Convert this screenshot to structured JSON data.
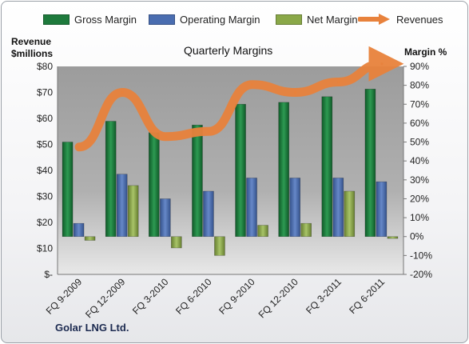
{
  "legend": {
    "gross": "Gross Margin",
    "operating": "Operating Margin",
    "net": "Net Margin",
    "revenues": "Revenues"
  },
  "colors": {
    "gross": "#1e7a3c",
    "operating": "#4a6db0",
    "net": "#8aa848",
    "revenues": "#e8823c",
    "plot_bg": "#a8a8a8"
  },
  "chart_data": {
    "type": "bar",
    "title": "Quarterly Margins",
    "ylabel_left": "Revenue $millions",
    "ylabel_right": "Margin %",
    "company": "Golar LNG Ltd.",
    "categories": [
      "FQ 9-2009",
      "FQ 12-2009",
      "FQ 3-2010",
      "FQ 6-2010",
      "FQ 9-2010",
      "FQ 12-2010",
      "FQ 3-2011",
      "FQ 6-2011"
    ],
    "left_ticks": [
      "$-",
      "$10",
      "$20",
      "$30",
      "$40",
      "$50",
      "$60",
      "$70",
      "$80"
    ],
    "right_ticks": [
      "-20%",
      "-10%",
      "0%",
      "10%",
      "20%",
      "30%",
      "40%",
      "50%",
      "60%",
      "70%",
      "80%",
      "90%"
    ],
    "ylim_left": [
      0,
      80
    ],
    "ylim_right": [
      -20,
      90
    ],
    "series": [
      {
        "name": "Gross Margin",
        "axis": "right",
        "values": [
          50,
          61,
          55,
          59,
          70,
          71,
          74,
          78
        ]
      },
      {
        "name": "Operating Margin",
        "axis": "right",
        "values": [
          7,
          33,
          20,
          24,
          31,
          31,
          31,
          29
        ]
      },
      {
        "name": "Net Margin",
        "axis": "right",
        "values": [
          -2,
          27,
          -6,
          -10,
          6,
          7,
          24,
          -1
        ]
      },
      {
        "name": "Revenues",
        "axis": "left",
        "type": "line",
        "values": [
          49,
          70,
          53,
          55,
          73,
          70,
          74,
          81
        ]
      }
    ],
    "grid": false,
    "legend_position": "top"
  }
}
